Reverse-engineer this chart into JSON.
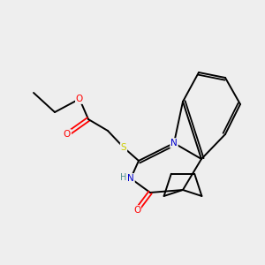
{
  "bg_color": "#eeeeee",
  "bond_color": "#000000",
  "colors": {
    "O": "#ff0000",
    "S": "#cccc00",
    "N": "#0000cc",
    "H": "#4d8f8f",
    "C": "#000000"
  },
  "figsize": [
    3.0,
    3.0
  ],
  "dpi": 100
}
